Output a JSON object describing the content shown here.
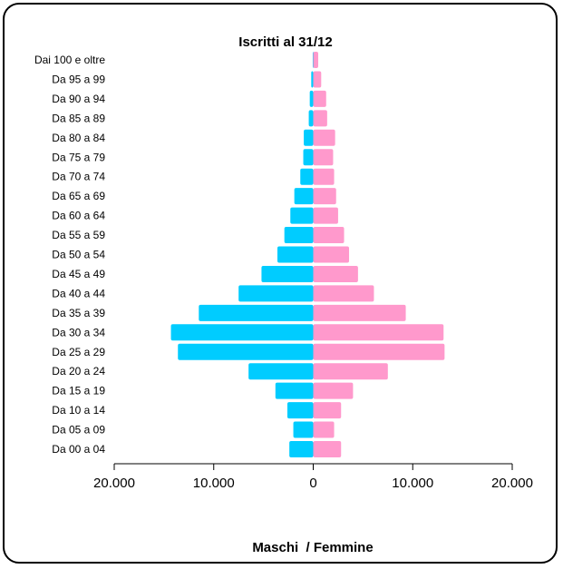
{
  "chart_data": {
    "type": "bar",
    "orientation": "horizontal",
    "layout": "population-pyramid",
    "title": "Iscritti al 31/12",
    "xlabel": "Maschi  / Femmine",
    "ylabel": "",
    "categories": [
      "Da 00 a 04",
      "Da 05 a 09",
      "Da 10 a 14",
      "Da 15 a 19",
      "Da 20 a 24",
      "Da 25 a 29",
      "Da 30 a 34",
      "Da 35 a 39",
      "Da 40 a 44",
      "Da 45 a 49",
      "Da 50 a 54",
      "Da 55 a 59",
      "Da 60 a 64",
      "Da 65 a 69",
      "Da 70 a 74",
      "Da 75 a 79",
      "Da 80 a 84",
      "Da 85 a 89",
      "Da 90 a 94",
      "Da 95 a 99",
      "Dai 100 e oltre"
    ],
    "series": [
      {
        "color": "#00ccff",
        "side": "left",
        "values": [
          2400,
          2000,
          2600,
          3800,
          6500,
          13600,
          14300,
          11500,
          7500,
          5200,
          3600,
          2900,
          2300,
          1900,
          1300,
          1000,
          950,
          450,
          350,
          200,
          50
        ]
      },
      {
        "color": "#ff99cc",
        "side": "right",
        "values": [
          2800,
          2100,
          2800,
          4000,
          7500,
          13200,
          13100,
          9300,
          6100,
          4500,
          3600,
          3100,
          2500,
          2300,
          2100,
          2000,
          2200,
          1400,
          1300,
          800,
          500
        ]
      }
    ],
    "xlim": [
      -20000,
      20000
    ],
    "xticks": [
      {
        "value": -20000,
        "label": "20.000"
      },
      {
        "value": -10000,
        "label": "10.000"
      },
      {
        "value": 0,
        "label": "0"
      },
      {
        "value": 10000,
        "label": "10.000"
      },
      {
        "value": 20000,
        "label": "20.000"
      }
    ],
    "grid": false
  }
}
